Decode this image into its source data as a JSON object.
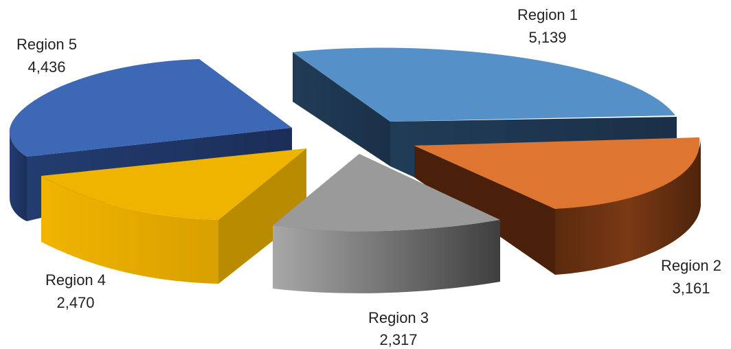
{
  "chart_data": {
    "type": "pie",
    "variant": "3d-exploded",
    "title": "",
    "legend": "none",
    "slices": [
      {
        "name": "Region 1",
        "value": 5139,
        "value_label": "5,139",
        "color": "#5590c8"
      },
      {
        "name": "Region 2",
        "value": 3161,
        "value_label": "3,161",
        "color": "#de7530"
      },
      {
        "name": "Region 3",
        "value": 2317,
        "value_label": "2,317",
        "color": "#9a9a9a"
      },
      {
        "name": "Region 4",
        "value": 2470,
        "value_label": "2,470",
        "color": "#efb400"
      },
      {
        "name": "Region 5",
        "value": 4436,
        "value_label": "4,436",
        "color": "#3d68b5"
      }
    ]
  }
}
